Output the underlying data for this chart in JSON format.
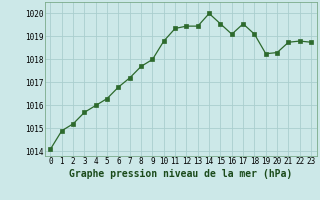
{
  "x_values": [
    0,
    1,
    2,
    3,
    4,
    5,
    6,
    7,
    8,
    9,
    10,
    11,
    12,
    13,
    14,
    15,
    16,
    17,
    18,
    19,
    20,
    21,
    22,
    23
  ],
  "y_values": [
    1014.1,
    1014.9,
    1015.2,
    1015.7,
    1016.0,
    1016.3,
    1016.8,
    1017.2,
    1017.7,
    1018.0,
    1018.8,
    1019.35,
    1019.45,
    1019.45,
    1020.0,
    1019.55,
    1019.1,
    1019.55,
    1019.1,
    1018.25,
    1018.3,
    1018.75,
    1018.8,
    1018.75
  ],
  "line_color": "#2d6a2d",
  "marker_color": "#2d6a2d",
  "bg_color": "#cce8e8",
  "grid_color": "#aacece",
  "xlabel": "Graphe pression niveau de la mer (hPa)",
  "ylim": [
    1013.8,
    1020.5
  ],
  "yticks": [
    1014,
    1015,
    1016,
    1017,
    1018,
    1019,
    1020
  ],
  "xticks": [
    0,
    1,
    2,
    3,
    4,
    5,
    6,
    7,
    8,
    9,
    10,
    11,
    12,
    13,
    14,
    15,
    16,
    17,
    18,
    19,
    20,
    21,
    22,
    23
  ],
  "tick_fontsize": 5.5,
  "label_fontsize": 7.0
}
